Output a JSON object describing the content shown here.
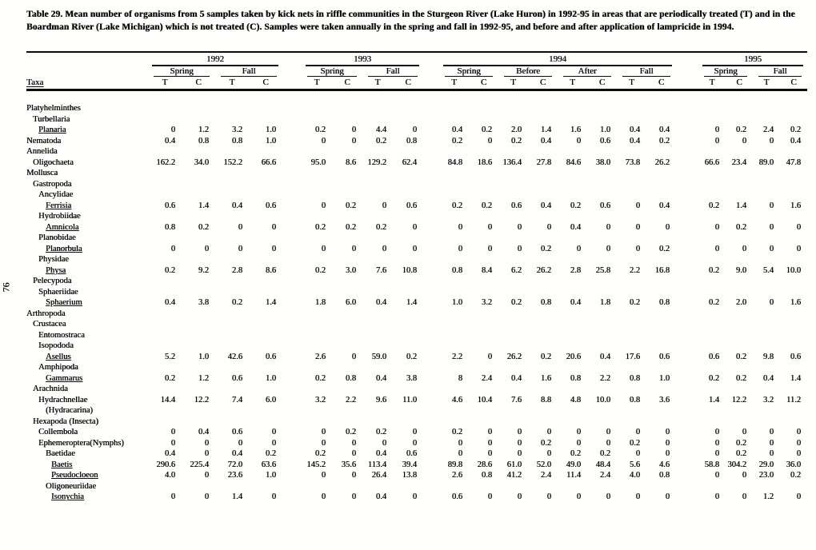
{
  "title": "Table 29.  Mean number of organisms from 5 samples taken by kick nets in riffle communities in the Sturgeon River (Lake Huron) in 1992-95 in areas that are periodically treated (T) and in the Boardman River (Lake Michigan) which is not treated (C).  Samples were taken annually in the spring and fall in 1992-95, and before and after application of lampricide in 1994.",
  "page_number": "76",
  "header": {
    "taxa_label": "Taxa",
    "t_label": "T",
    "c_label": "C",
    "year_groups": [
      {
        "year": "1992",
        "seasons": [
          "Spring",
          "Fall"
        ]
      },
      {
        "year": "1993",
        "seasons": [
          "Spring",
          "Fall"
        ]
      },
      {
        "year": "1994",
        "seasons": [
          "Spring",
          "Before",
          "After",
          "Fall"
        ]
      },
      {
        "year": "1995",
        "seasons": [
          "Spring",
          "Fall"
        ]
      }
    ]
  },
  "rows": [
    {
      "taxa": "Platyhelminthes",
      "indent": 0,
      "underline": false,
      "values": null
    },
    {
      "taxa": "Turbellaria",
      "indent": 1,
      "underline": false,
      "values": null
    },
    {
      "taxa": "Planaria",
      "indent": 2,
      "underline": true,
      "values": [
        "0",
        "1.2",
        "3.2",
        "1.0",
        "0.2",
        "0",
        "4.4",
        "0",
        "0.4",
        "0.2",
        "2.0",
        "1.4",
        "1.6",
        "1.0",
        "0.4",
        "0.4",
        "0",
        "0.2",
        "2.4",
        "0.2"
      ]
    },
    {
      "taxa": "Nematoda",
      "indent": 0,
      "underline": false,
      "values": [
        "0.4",
        "0.8",
        "0.8",
        "1.0",
        "0",
        "0",
        "0.2",
        "0.8",
        "0.2",
        "0",
        "0.2",
        "0.4",
        "0",
        "0.6",
        "0.4",
        "0.2",
        "0",
        "0",
        "0",
        "0.4"
      ]
    },
    {
      "taxa": "Annelida",
      "indent": 0,
      "underline": false,
      "values": null
    },
    {
      "taxa": "Oligochaeta",
      "indent": 1,
      "underline": false,
      "values": [
        "162.2",
        "34.0",
        "152.2",
        "66.6",
        "95.0",
        "8.6",
        "129.2",
        "62.4",
        "84.8",
        "18.6",
        "136.4",
        "27.8",
        "84.6",
        "38.0",
        "73.8",
        "26.2",
        "66.6",
        "23.4",
        "89.0",
        "47.8"
      ]
    },
    {
      "taxa": "Mollusca",
      "indent": 0,
      "underline": false,
      "values": null
    },
    {
      "taxa": "Gastropoda",
      "indent": 1,
      "underline": false,
      "values": null
    },
    {
      "taxa": "Ancylidae",
      "indent": 2,
      "underline": false,
      "values": null
    },
    {
      "taxa": "Ferrisia",
      "indent": 3,
      "underline": true,
      "values": [
        "0.6",
        "1.4",
        "0.4",
        "0.6",
        "0",
        "0.2",
        "0",
        "0.6",
        "0.2",
        "0.2",
        "0.6",
        "0.4",
        "0.2",
        "0.6",
        "0",
        "0.4",
        "0.2",
        "1.4",
        "0",
        "1.6"
      ]
    },
    {
      "taxa": "Hydrobiidae",
      "indent": 2,
      "underline": false,
      "values": null
    },
    {
      "taxa": "Amnicola",
      "indent": 3,
      "underline": true,
      "values": [
        "0.8",
        "0.2",
        "0",
        "0",
        "0.2",
        "0.2",
        "0.2",
        "0",
        "0",
        "0",
        "0",
        "0",
        "0.4",
        "0",
        "0",
        "0",
        "0",
        "0.2",
        "0",
        "0"
      ]
    },
    {
      "taxa": "Planobidae",
      "indent": 2,
      "underline": false,
      "values": null
    },
    {
      "taxa": "Planorbula",
      "indent": 3,
      "underline": true,
      "values": [
        "0",
        "0",
        "0",
        "0",
        "0",
        "0",
        "0",
        "0",
        "0",
        "0",
        "0",
        "0.2",
        "0",
        "0",
        "0",
        "0.2",
        "0",
        "0",
        "0",
        "0"
      ]
    },
    {
      "taxa": "Physidae",
      "indent": 2,
      "underline": false,
      "values": null
    },
    {
      "taxa": "Physa",
      "indent": 3,
      "underline": true,
      "values": [
        "0.2",
        "9.2",
        "2.8",
        "8.6",
        "0.2",
        "3.0",
        "7.6",
        "10.8",
        "0.8",
        "8.4",
        "6.2",
        "26.2",
        "2.8",
        "25.8",
        "2.2",
        "16.8",
        "0.2",
        "9.0",
        "5.4",
        "10.0"
      ]
    },
    {
      "taxa": "Pelecypoda",
      "indent": 1,
      "underline": false,
      "values": null
    },
    {
      "taxa": "Sphaeriidae",
      "indent": 2,
      "underline": false,
      "values": null
    },
    {
      "taxa": "Sphaerium",
      "indent": 3,
      "underline": true,
      "values": [
        "0.4",
        "3.8",
        "0.2",
        "1.4",
        "1.8",
        "6.0",
        "0.4",
        "1.4",
        "1.0",
        "3.2",
        "0.2",
        "0.8",
        "0.4",
        "1.8",
        "0.2",
        "0.8",
        "0.2",
        "2.0",
        "0",
        "1.6"
      ]
    },
    {
      "taxa": "Arthropoda",
      "indent": 0,
      "underline": false,
      "values": null
    },
    {
      "taxa": "Crustacea",
      "indent": 1,
      "underline": false,
      "values": null
    },
    {
      "taxa": "Entomostraca",
      "indent": 2,
      "underline": false,
      "values": null
    },
    {
      "taxa": "Isopododa",
      "indent": 2,
      "underline": false,
      "values": null
    },
    {
      "taxa": "Asellus",
      "indent": 3,
      "underline": true,
      "values": [
        "5.2",
        "1.0",
        "42.6",
        "0.6",
        "2.6",
        "0",
        "59.0",
        "0.2",
        "2.2",
        "0",
        "26.2",
        "0.2",
        "20.6",
        "0.4",
        "17.6",
        "0.6",
        "0.6",
        "0.2",
        "9.8",
        "0.6"
      ]
    },
    {
      "taxa": "Amphipoda",
      "indent": 2,
      "underline": false,
      "values": null
    },
    {
      "taxa": "Gammarus",
      "indent": 3,
      "underline": true,
      "values": [
        "0.2",
        "1.2",
        "0.6",
        "1.0",
        "0.2",
        "0.8",
        "0.4",
        "3.8",
        "8",
        "2.4",
        "0.4",
        "1.6",
        "0.8",
        "2.2",
        "0.8",
        "1.0",
        "0.2",
        "0.2",
        "0.4",
        "1.4"
      ]
    },
    {
      "taxa": "Arachnida",
      "indent": 1,
      "underline": false,
      "values": null
    },
    {
      "taxa": "Hydrachnellae",
      "indent": 2,
      "underline": false,
      "values": [
        "14.4",
        "12.2",
        "7.4",
        "6.0",
        "3.2",
        "2.2",
        "9.6",
        "11.0",
        "4.6",
        "10.4",
        "7.6",
        "8.8",
        "4.8",
        "10.0",
        "0.8",
        "3.6",
        "1.4",
        "12.2",
        "3.2",
        "11.2"
      ]
    },
    {
      "taxa": "(Hydracarina)",
      "indent": 3,
      "underline": false,
      "values": null
    },
    {
      "taxa": "Hexapoda (Insecta)",
      "indent": 1,
      "underline": false,
      "values": null
    },
    {
      "taxa": "Collembola",
      "indent": 2,
      "underline": false,
      "values": [
        "0",
        "0.4",
        "0.6",
        "0",
        "0",
        "0.2",
        "0.2",
        "0",
        "0.2",
        "0",
        "0",
        "0",
        "0",
        "0",
        "0",
        "0",
        "0",
        "0",
        "0",
        "0"
      ]
    },
    {
      "taxa": "Ephemeroptera(Nymphs)",
      "indent": 2,
      "underline": false,
      "values": [
        "0",
        "0",
        "0",
        "0",
        "0",
        "0",
        "0",
        "0",
        "0",
        "0",
        "0",
        "0.2",
        "0",
        "0",
        "0.2",
        "0",
        "0",
        "0.2",
        "0",
        "0"
      ]
    },
    {
      "taxa": "Baetidae",
      "indent": 3,
      "underline": false,
      "values": [
        "0.4",
        "0",
        "0.4",
        "0.2",
        "0.2",
        "0",
        "0.4",
        "0.6",
        "0",
        "0",
        "0",
        "0",
        "0.2",
        "0.2",
        "0",
        "0",
        "0",
        "0.2",
        "0",
        "0"
      ]
    },
    {
      "taxa": "Baetis",
      "indent": 4,
      "underline": true,
      "values": [
        "290.6",
        "225.4",
        "72.0",
        "63.6",
        "145.2",
        "35.6",
        "113.4",
        "39.4",
        "89.8",
        "28.6",
        "61.0",
        "52.0",
        "49.0",
        "48.4",
        "5.6",
        "4.6",
        "58.8",
        "304.2",
        "29.0",
        "36.0"
      ]
    },
    {
      "taxa": "Pseudocloeon",
      "indent": 4,
      "underline": true,
      "values": [
        "4.0",
        "0",
        "23.6",
        "1.0",
        "0",
        "0",
        "26.4",
        "13.8",
        "2.6",
        "0.8",
        "41.2",
        "2.4",
        "11.4",
        "2.4",
        "4.0",
        "0.8",
        "0",
        "0",
        "23.0",
        "0.2"
      ]
    },
    {
      "taxa": "Oligoneuriidae",
      "indent": 3,
      "underline": false,
      "values": null
    },
    {
      "taxa": "Isonychia",
      "indent": 4,
      "underline": true,
      "values": [
        "0",
        "0",
        "1.4",
        "0",
        "0",
        "0",
        "0.4",
        "0",
        "0.6",
        "0",
        "0",
        "0",
        "0",
        "0",
        "0",
        "0",
        "0",
        "0",
        "1.2",
        "0"
      ]
    }
  ]
}
